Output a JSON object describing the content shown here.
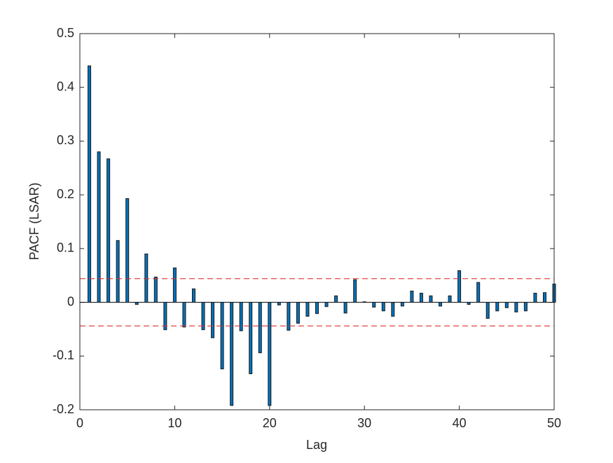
{
  "chart_data": {
    "type": "bar",
    "xlabel": "Lag",
    "ylabel": "PACF (LSAR)",
    "x": [
      1,
      2,
      3,
      4,
      5,
      6,
      7,
      8,
      9,
      10,
      11,
      12,
      13,
      14,
      15,
      16,
      17,
      18,
      19,
      20,
      21,
      22,
      23,
      24,
      25,
      26,
      27,
      28,
      29,
      30,
      31,
      32,
      33,
      34,
      35,
      36,
      37,
      38,
      39,
      40,
      41,
      42,
      43,
      44,
      45,
      46,
      47,
      48,
      49,
      50
    ],
    "values": [
      0.44,
      0.28,
      0.267,
      0.115,
      0.193,
      -0.004,
      0.09,
      0.047,
      -0.051,
      0.064,
      -0.046,
      0.025,
      -0.051,
      -0.066,
      -0.124,
      -0.192,
      -0.053,
      -0.133,
      -0.094,
      -0.192,
      -0.005,
      -0.052,
      -0.039,
      -0.026,
      -0.021,
      -0.008,
      0.012,
      -0.02,
      0.042,
      0.001,
      -0.009,
      -0.016,
      -0.026,
      -0.007,
      0.021,
      0.017,
      0.012,
      -0.007,
      0.012,
      0.059,
      -0.004,
      0.037,
      -0.03,
      -0.016,
      -0.01,
      -0.018,
      -0.016,
      0.017,
      0.018,
      0.034
    ],
    "color": "#0072bd",
    "edge_color": "#1a1a1a",
    "confidence_bounds": [
      0.044,
      -0.044
    ],
    "bound_color": "#e03030",
    "xlim": [
      0,
      50
    ],
    "xticks": [
      0,
      10,
      20,
      30,
      40,
      50
    ],
    "ylim": [
      -0.2,
      0.5
    ],
    "yticks": [
      -0.2,
      -0.1,
      0,
      0.1,
      0.2,
      0.3,
      0.4,
      0.5
    ]
  }
}
